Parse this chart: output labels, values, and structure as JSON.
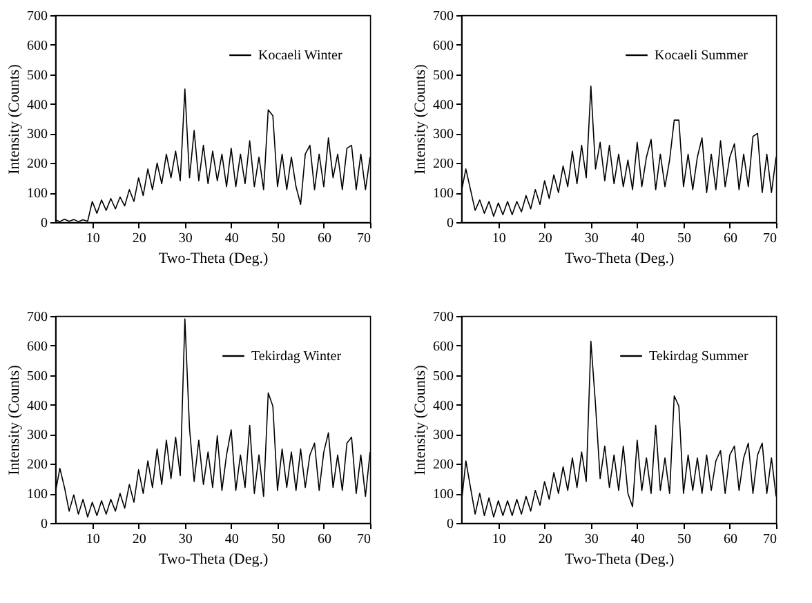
{
  "chart_data": [
    {
      "type": "line",
      "xlabel": "Two-Theta (Deg.)",
      "ylabel": "Intensity (Counts)",
      "xlim": [
        2,
        70
      ],
      "xticks": [
        10,
        20,
        30,
        40,
        50,
        60,
        70
      ],
      "ylim": [
        0,
        700
      ],
      "yticks": [
        0,
        100,
        200,
        300,
        400,
        500,
        600,
        700
      ],
      "legend": "top right",
      "grid": false,
      "x": [
        2,
        3,
        4,
        5,
        6,
        7,
        8,
        9,
        10,
        11,
        12,
        13,
        14,
        15,
        16,
        17,
        18,
        19,
        20,
        21,
        22,
        23,
        24,
        25,
        26,
        27,
        28,
        29,
        30,
        31,
        32,
        33,
        34,
        35,
        36,
        37,
        38,
        39,
        40,
        41,
        42,
        43,
        44,
        45,
        46,
        47,
        48,
        49,
        50,
        51,
        52,
        53,
        54,
        55,
        56,
        57,
        58,
        59,
        60,
        61,
        62,
        63,
        64,
        65,
        66,
        67,
        68,
        69,
        70
      ],
      "series": [
        {
          "name": "Kocaeli Winter",
          "color": "#000000",
          "values": [
            8,
            2,
            10,
            3,
            9,
            2,
            8,
            3,
            70,
            30,
            75,
            40,
            80,
            45,
            85,
            55,
            110,
            70,
            150,
            90,
            180,
            110,
            200,
            130,
            230,
            150,
            240,
            140,
            450,
            150,
            310,
            140,
            260,
            130,
            240,
            140,
            230,
            120,
            250,
            120,
            230,
            130,
            275,
            120,
            220,
            110,
            380,
            360,
            120,
            230,
            110,
            220,
            120,
            60,
            230,
            260,
            110,
            230,
            120,
            285,
            150,
            230,
            110,
            250,
            260,
            110,
            230,
            110,
            220
          ]
        }
      ]
    },
    {
      "type": "line",
      "xlabel": "Two-Theta (Deg.)",
      "ylabel": "Intensity (Counts)",
      "xlim": [
        2,
        70
      ],
      "xticks": [
        10,
        20,
        30,
        40,
        50,
        60,
        70
      ],
      "ylim": [
        0,
        700
      ],
      "yticks": [
        0,
        100,
        200,
        300,
        400,
        500,
        600,
        700
      ],
      "legend": "top right",
      "grid": false,
      "x": [
        2,
        3,
        4,
        5,
        6,
        7,
        8,
        9,
        10,
        11,
        12,
        13,
        14,
        15,
        16,
        17,
        18,
        19,
        20,
        21,
        22,
        23,
        24,
        25,
        26,
        27,
        28,
        29,
        30,
        31,
        32,
        33,
        34,
        35,
        36,
        37,
        38,
        39,
        40,
        41,
        42,
        43,
        44,
        45,
        46,
        47,
        48,
        49,
        50,
        51,
        52,
        53,
        54,
        55,
        56,
        57,
        58,
        59,
        60,
        61,
        62,
        63,
        64,
        65,
        66,
        67,
        68,
        69,
        70
      ],
      "series": [
        {
          "name": "Kocaeli Summer",
          "color": "#000000",
          "values": [
            100,
            180,
            110,
            40,
            75,
            30,
            70,
            20,
            65,
            25,
            70,
            25,
            70,
            35,
            90,
            45,
            110,
            60,
            140,
            80,
            160,
            100,
            190,
            120,
            240,
            130,
            260,
            150,
            460,
            180,
            270,
            140,
            260,
            130,
            230,
            120,
            210,
            110,
            270,
            120,
            220,
            280,
            110,
            230,
            120,
            210,
            345,
            345,
            120,
            230,
            110,
            220,
            285,
            100,
            230,
            110,
            275,
            120,
            220,
            265,
            110,
            230,
            120,
            290,
            300,
            100,
            230,
            100,
            220
          ]
        }
      ]
    },
    {
      "type": "line",
      "xlabel": "Two-Theta (Deg.)",
      "ylabel": "Intensity (Counts)",
      "xlim": [
        2,
        70
      ],
      "xticks": [
        10,
        20,
        30,
        40,
        50,
        60,
        70
      ],
      "ylim": [
        0,
        700
      ],
      "yticks": [
        0,
        100,
        200,
        300,
        400,
        500,
        600,
        700
      ],
      "legend": "top right",
      "grid": false,
      "x": [
        2,
        3,
        4,
        5,
        6,
        7,
        8,
        9,
        10,
        11,
        12,
        13,
        14,
        15,
        16,
        17,
        18,
        19,
        20,
        21,
        22,
        23,
        24,
        25,
        26,
        27,
        28,
        29,
        30,
        31,
        32,
        33,
        34,
        35,
        36,
        37,
        38,
        39,
        40,
        41,
        42,
        43,
        44,
        45,
        46,
        47,
        48,
        49,
        50,
        51,
        52,
        53,
        54,
        55,
        56,
        57,
        58,
        59,
        60,
        61,
        62,
        63,
        64,
        65,
        66,
        67,
        68,
        69,
        70
      ],
      "series": [
        {
          "name": "Tekirdag Winter",
          "color": "#000000",
          "values": [
            100,
            185,
            120,
            40,
            95,
            30,
            80,
            20,
            70,
            25,
            75,
            30,
            80,
            40,
            100,
            50,
            130,
            70,
            180,
            100,
            210,
            120,
            250,
            130,
            280,
            150,
            290,
            160,
            690,
            320,
            140,
            280,
            130,
            240,
            120,
            295,
            110,
            230,
            315,
            110,
            230,
            120,
            330,
            100,
            230,
            90,
            440,
            395,
            110,
            250,
            120,
            240,
            110,
            250,
            120,
            230,
            270,
            110,
            240,
            305,
            120,
            230,
            110,
            270,
            290,
            100,
            230,
            90,
            240
          ]
        }
      ]
    },
    {
      "type": "line",
      "xlabel": "Two-Theta (Deg.)",
      "ylabel": "Intensity (Counts)",
      "xlim": [
        2,
        70
      ],
      "xticks": [
        10,
        20,
        30,
        40,
        50,
        60,
        70
      ],
      "ylim": [
        0,
        700
      ],
      "yticks": [
        0,
        100,
        200,
        300,
        400,
        500,
        600,
        700
      ],
      "legend": "top right",
      "grid": false,
      "x": [
        2,
        3,
        4,
        5,
        6,
        7,
        8,
        9,
        10,
        11,
        12,
        13,
        14,
        15,
        16,
        17,
        18,
        19,
        20,
        21,
        22,
        23,
        24,
        25,
        26,
        27,
        28,
        29,
        30,
        31,
        32,
        33,
        34,
        35,
        36,
        37,
        38,
        39,
        40,
        41,
        42,
        43,
        44,
        45,
        46,
        47,
        48,
        49,
        50,
        51,
        52,
        53,
        54,
        55,
        56,
        57,
        58,
        59,
        60,
        61,
        62,
        63,
        64,
        65,
        66,
        67,
        68,
        69,
        70
      ],
      "series": [
        {
          "name": "Tekirdag Summer",
          "color": "#000000",
          "values": [
            60,
            210,
            120,
            30,
            100,
            25,
            85,
            20,
            75,
            25,
            75,
            25,
            80,
            30,
            90,
            40,
            110,
            60,
            140,
            80,
            170,
            100,
            190,
            110,
            220,
            120,
            240,
            140,
            615,
            400,
            150,
            260,
            120,
            230,
            110,
            260,
            100,
            55,
            280,
            110,
            220,
            100,
            330,
            110,
            220,
            100,
            430,
            395,
            100,
            230,
            110,
            220,
            100,
            230,
            110,
            210,
            245,
            100,
            230,
            260,
            110,
            220,
            270,
            100,
            230,
            270,
            100,
            220,
            90
          ]
        }
      ]
    }
  ]
}
